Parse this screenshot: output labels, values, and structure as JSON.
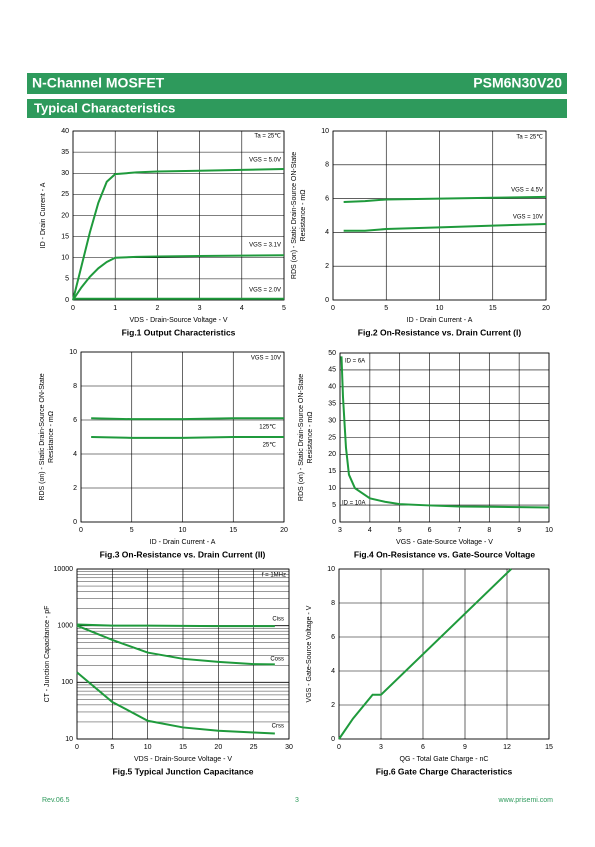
{
  "header": {
    "title": "N-Channel MOSFET",
    "part": "PSM6N30V20",
    "section": "Typical Characteristics"
  },
  "footer": {
    "rev": "Rev.06.5",
    "page": "3",
    "url": "www.prisemi.com"
  },
  "chart_data": [
    {
      "type": "line",
      "title": "Fig.1 Output Characteristics",
      "xlabel": "VDS - Drain-Source Voltage - V",
      "ylabel": [
        "ID - Drain Current - A"
      ],
      "annotations": [
        "Ta = 25℃"
      ],
      "grid": true,
      "xlim": [
        0,
        5
      ],
      "xticks": [
        0,
        1,
        2,
        3,
        4,
        5
      ],
      "ylim": [
        0,
        40
      ],
      "yticks": [
        0,
        5,
        10,
        15,
        20,
        25,
        30,
        35,
        40
      ],
      "x": [
        0,
        0.2,
        0.4,
        0.6,
        0.8,
        1.0,
        1.5,
        2,
        3,
        4,
        5
      ],
      "series": [
        {
          "name": "VGS = 5.0V",
          "color": "#1f9a3c",
          "values": [
            0,
            8,
            16,
            23,
            28,
            29.8,
            30.2,
            30.4,
            30.6,
            30.8,
            31
          ]
        },
        {
          "name": "VGS = 3.1V",
          "color": "#1f9a3c",
          "values": [
            0,
            3,
            5.5,
            7.5,
            9,
            10,
            10.2,
            10.3,
            10.4,
            10.5,
            10.6
          ]
        },
        {
          "name": "VGS = 2.0V",
          "color": "#1f9a3c",
          "values": [
            0.3,
            0.3,
            0.3,
            0.3,
            0.3,
            0.3,
            0.3,
            0.3,
            0.3,
            0.3,
            0.3
          ]
        }
      ]
    },
    {
      "type": "line",
      "title": "Fig.2 On-Resistance vs. Drain Current (I)",
      "xlabel": "ID - Drain Current - A",
      "ylabel": [
        "RDS (on) - Static Drain-Source ON-State",
        "Resistance - mΩ"
      ],
      "annotations": [
        "Ta = 25℃"
      ],
      "grid": true,
      "xlim": [
        0,
        20
      ],
      "xticks": [
        0,
        5,
        10,
        15,
        20
      ],
      "ylim": [
        0,
        10
      ],
      "yticks": [
        0,
        2,
        4,
        6,
        8,
        10
      ],
      "x": [
        1,
        3,
        5,
        10,
        15,
        20
      ],
      "series": [
        {
          "name": "VGS = 4.5V",
          "color": "#1f9a3c",
          "values": [
            5.8,
            5.85,
            5.95,
            6.0,
            6.05,
            6.1
          ]
        },
        {
          "name": "VGS = 10V",
          "color": "#1f9a3c",
          "values": [
            4.1,
            4.1,
            4.2,
            4.3,
            4.4,
            4.5
          ]
        }
      ]
    },
    {
      "type": "line",
      "title": "Fig.3 On-Resistance vs. Drain Current (II)",
      "xlabel": "ID - Drain Current - A",
      "ylabel": [
        "RDS (on) - Static Drain-Source ON-State",
        "Resistance - mΩ"
      ],
      "annotations": [
        "VGS = 10V"
      ],
      "grid": true,
      "xlim": [
        0,
        20
      ],
      "xticks": [
        0,
        5,
        10,
        15,
        20
      ],
      "ylim": [
        0,
        10
      ],
      "yticks": [
        0,
        2,
        4,
        6,
        8,
        10
      ],
      "x": [
        1,
        5,
        10,
        15,
        20
      ],
      "series": [
        {
          "name": "125℃",
          "color": "#1f9a3c",
          "values": [
            6.1,
            6.05,
            6.05,
            6.1,
            6.1
          ]
        },
        {
          "name": "25℃",
          "color": "#1f9a3c",
          "values": [
            5.0,
            4.95,
            4.95,
            5.0,
            5.0
          ]
        }
      ]
    },
    {
      "type": "line",
      "title": "Fig.4 On-Resistance vs. Gate-Source Voltage",
      "xlabel": "VGS - Gate-Source Voltage - V",
      "ylabel": [
        "RDS (on) - Static Drain-Source ON-State",
        "Resistance - mΩ"
      ],
      "annotations": [
        "ID = 6A",
        "ID = 10A"
      ],
      "grid": true,
      "xlim": [
        3,
        10
      ],
      "xticks": [
        3,
        4,
        5,
        6,
        7,
        8,
        9,
        10
      ],
      "ylim": [
        0,
        50
      ],
      "yticks": [
        0,
        5,
        10,
        15,
        20,
        25,
        30,
        35,
        40,
        45,
        50
      ],
      "x": [
        3.05,
        3.1,
        3.2,
        3.3,
        3.5,
        4,
        4.5,
        5,
        6,
        7,
        8,
        9,
        10
      ],
      "series": [
        {
          "color": "#1f9a3c",
          "values": [
            49,
            37,
            22,
            14,
            10,
            7,
            6,
            5.3,
            4.9,
            4.6,
            4.5,
            4.4,
            4.3
          ]
        }
      ]
    },
    {
      "type": "line",
      "title": "Fig.5 Typical Junction Capacitance",
      "xlabel": "VDS - Drain-Source Voltage - V",
      "ylabel": [
        "CT - Junction Capacitance - pF"
      ],
      "annotations": [
        "f = 1MHz"
      ],
      "grid": true,
      "yscale": "log",
      "xlim": [
        0,
        30
      ],
      "xticks": [
        0,
        5,
        10,
        15,
        20,
        25,
        30
      ],
      "ylim": [
        10,
        10000
      ],
      "yticks": [
        10,
        100,
        1000,
        10000
      ],
      "x": [
        0,
        5,
        10,
        15,
        20,
        25,
        28
      ],
      "series": [
        {
          "name": "Ciss",
          "color": "#1f9a3c",
          "values": [
            1050,
            1000,
            1000,
            990,
            980,
            980,
            980
          ]
        },
        {
          "name": "Coss",
          "color": "#1f9a3c",
          "values": [
            1000,
            560,
            335,
            260,
            230,
            210,
            207
          ]
        },
        {
          "name": "Crss",
          "color": "#1f9a3c",
          "values": [
            150,
            45,
            21,
            16,
            14,
            13,
            12.5
          ]
        }
      ]
    },
    {
      "type": "line",
      "title": "Fig.6 Gate Charge Characteristics",
      "xlabel": "QG - Total Gate Charge - nC",
      "ylabel": [
        "VGS - Gate-Source Voltage - V"
      ],
      "annotations": [],
      "grid": true,
      "xlim": [
        0,
        15
      ],
      "xticks": [
        0,
        3,
        6,
        9,
        12,
        15
      ],
      "ylim": [
        0,
        10
      ],
      "yticks": [
        0,
        2,
        4,
        6,
        8,
        10
      ],
      "x": [
        0,
        1,
        2.4,
        3,
        12.3
      ],
      "series": [
        {
          "color": "#1f9a3c",
          "values": [
            0,
            1.2,
            2.6,
            2.6,
            10
          ]
        }
      ]
    }
  ]
}
